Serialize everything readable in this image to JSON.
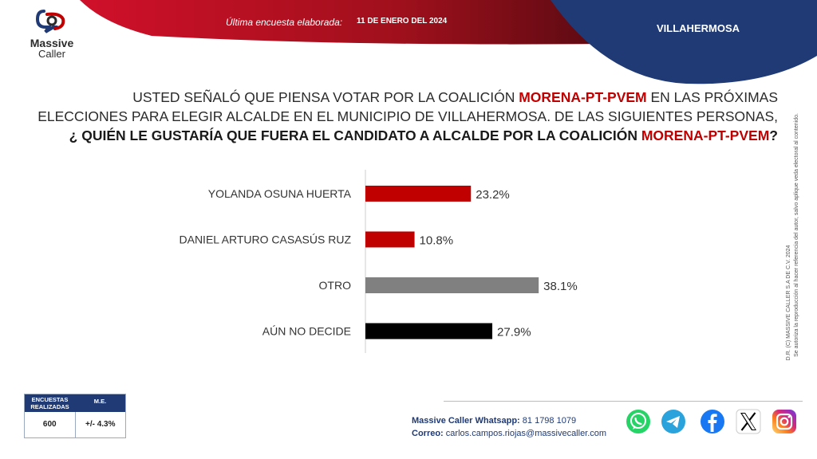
{
  "header": {
    "logo_line1": "Massive",
    "logo_line2": "Caller",
    "survey_label": "Última encuesta elaborada:",
    "survey_date": "11 DE ENERO DEL 2024",
    "city": "VILLAHERMOSA",
    "colors": {
      "red": "#a5101c",
      "navy": "#1f3a75"
    }
  },
  "question": {
    "l1_a": "USTED SEÑALÓ QUE PIENSA VOTAR POR LA COALICIÓN ",
    "l1_hl": "MORENA-PT-PVEM",
    "l1_b": " EN LAS PRÓXIMAS",
    "l2": "ELECCIONES PARA ELEGIR ALCALDE EN EL MUNICIPIO DE VILLAHERMOSA. DE LAS SIGUIENTES PERSONAS,",
    "l3_a": "¿ QUIÉN LE GUSTARÍA QUE FUERA EL CANDIDATO A ALCALDE POR LA COALICIÓN ",
    "l3_hl": "MORENA-PT-PVEM",
    "l3_b": "?"
  },
  "side_note": {
    "line1": "D.R. (C) MASSIVE CALLER S.A DE C.V. 2024",
    "line2": "Se autoriza la reproducción al hacer referencia del autor, salvo aplique veda electoral al contenido."
  },
  "chart_data": {
    "type": "bar",
    "orientation": "horizontal",
    "categories": [
      "YOLANDA OSUNA HUERTA",
      "DANIEL ARTURO CASASÚS RUZ",
      "OTRO",
      "AÚN NO DECIDE"
    ],
    "values": [
      23.2,
      10.8,
      38.1,
      27.9
    ],
    "labels": [
      "23.2%",
      "10.8%",
      "38.1%",
      "27.9%"
    ],
    "colors": [
      "#c00000",
      "#c00000",
      "#808080",
      "#000000"
    ],
    "xlim": [
      0,
      60
    ],
    "unit": "%"
  },
  "stats": {
    "surveys_label": "ENCUESTAS REALIZADAS",
    "me_label": "M.E.",
    "surveys_value": "600",
    "me_value": "+/- 4.3%"
  },
  "contact": {
    "whatsapp_label": "Massive Caller Whatsapp:",
    "whatsapp_number": "81 1798 1079",
    "email_label": "Correo:",
    "email": "carlos.campos.riojas@massivecaller.com"
  },
  "social": [
    "whatsapp-icon",
    "telegram-icon",
    "facebook-icon",
    "x-icon",
    "instagram-icon"
  ]
}
